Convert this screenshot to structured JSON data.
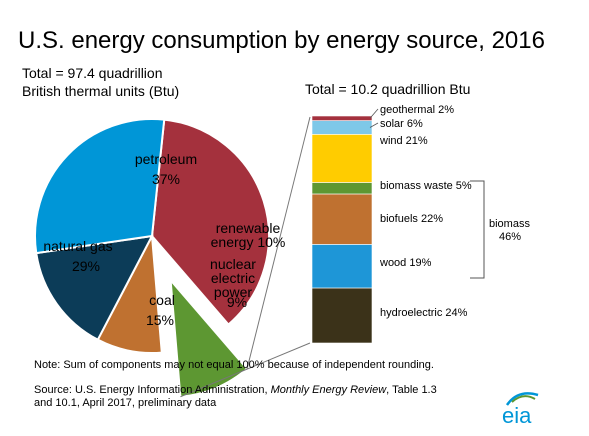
{
  "chart_data": {
    "type": "pie",
    "title": "U.S. energy consumption by energy source, 2016",
    "total_label": [
      "Total = 97.4 quadrillion",
      "British thermal units (Btu)"
    ],
    "slices": [
      {
        "key": "petroleum",
        "label": [
          "petroleum"
        ],
        "value": 37,
        "pct_label": "37%",
        "color": "#A4313D"
      },
      {
        "key": "renewable",
        "label": [
          "renewable",
          "energy 10%"
        ],
        "value": 10,
        "pct_label": "",
        "color": "#5D9732"
      },
      {
        "key": "nuclear",
        "label": [
          "nuclear",
          "electric",
          "power"
        ],
        "value": 9,
        "pct_label": "9%",
        "color": "#BF7130"
      },
      {
        "key": "coal",
        "label": [
          "coal"
        ],
        "value": 15,
        "pct_label": "15%",
        "color": "#0C3C58"
      },
      {
        "key": "natural_gas",
        "label": [
          "natural gas"
        ],
        "value": 29,
        "pct_label": "29%",
        "color": "#0096D7"
      }
    ],
    "breakdown": {
      "total_label": "Total = 10.2 quadrillion Btu",
      "segments": [
        {
          "label": "hydroelectric 24%",
          "value": 24,
          "color": "#3B3219"
        },
        {
          "label": "wood 19%",
          "value": 19,
          "color": "#1E96D7"
        },
        {
          "label": "biofuels 22%",
          "value": 22,
          "color": "#BF7130"
        },
        {
          "label": "biomass waste 5%",
          "value": 5,
          "color": "#5D9732"
        },
        {
          "label": "wind 21%",
          "value": 21,
          "color": "#FFCC00"
        },
        {
          "label": "solar 6%",
          "value": 6,
          "color": "#7EC8E8"
        },
        {
          "label": "geothermal 2%",
          "value": 2,
          "color": "#A4313D"
        }
      ],
      "group_label": [
        "biomass",
        "46%"
      ]
    }
  },
  "note": "Note: Sum of components may not equal 100% because of independent rounding.",
  "source": {
    "prefix": "Source: U.S. Energy Information Administration, ",
    "italic": "Monthly Energy Review",
    "suffix": ", Table 1.3",
    "line2": "and 10.1, April 2017, preliminary data"
  },
  "logo": {
    "text": "eia",
    "color": "#0096D7"
  }
}
